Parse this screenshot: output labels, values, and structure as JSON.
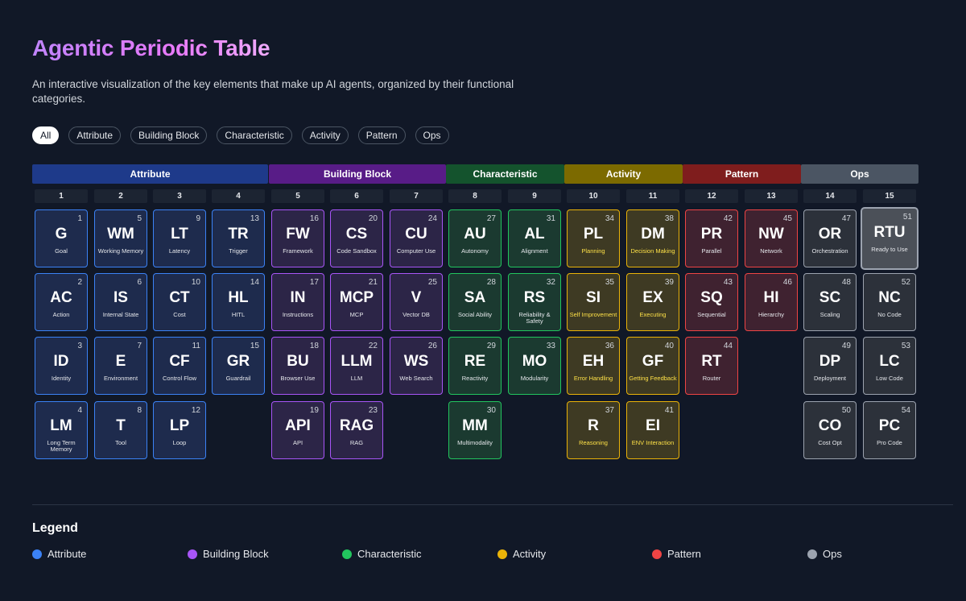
{
  "title": "Agentic Periodic Table",
  "subtitle": "An interactive visualization of the key elements that make up AI agents, organized by their functional categories.",
  "filters": [
    "All",
    "Attribute",
    "Building Block",
    "Characteristic",
    "Activity",
    "Pattern",
    "Ops"
  ],
  "active_filter": "All",
  "categories": [
    {
      "key": "attribute",
      "label": "Attribute",
      "color": "#1e3a8a"
    },
    {
      "key": "building",
      "label": "Building Block",
      "color": "#581c87"
    },
    {
      "key": "characteristic",
      "label": "Characteristic",
      "color": "#14532d"
    },
    {
      "key": "activity",
      "label": "Activity",
      "color": "#7c6a00"
    },
    {
      "key": "pattern",
      "label": "Pattern",
      "color": "#7f1d1d"
    },
    {
      "key": "ops",
      "label": "Ops",
      "color": "#4b5563"
    }
  ],
  "columns": [
    "1",
    "2",
    "3",
    "4",
    "5",
    "6",
    "7",
    "8",
    "9",
    "10",
    "11",
    "12",
    "13",
    "14",
    "15"
  ],
  "elements": [
    {
      "n": 1,
      "sym": "G",
      "name": "Goal",
      "cat": "attribute"
    },
    {
      "n": 2,
      "sym": "AC",
      "name": "Action",
      "cat": "attribute"
    },
    {
      "n": 3,
      "sym": "ID",
      "name": "Identity",
      "cat": "attribute"
    },
    {
      "n": 4,
      "sym": "LM",
      "name": "Long Term Memory",
      "cat": "attribute"
    },
    {
      "n": 5,
      "sym": "WM",
      "name": "Working Memory",
      "cat": "attribute"
    },
    {
      "n": 6,
      "sym": "IS",
      "name": "Internal State",
      "cat": "attribute"
    },
    {
      "n": 7,
      "sym": "E",
      "name": "Environment",
      "cat": "attribute"
    },
    {
      "n": 8,
      "sym": "T",
      "name": "Tool",
      "cat": "attribute"
    },
    {
      "n": 9,
      "sym": "LT",
      "name": "Latency",
      "cat": "attribute"
    },
    {
      "n": 10,
      "sym": "CT",
      "name": "Cost",
      "cat": "attribute"
    },
    {
      "n": 11,
      "sym": "CF",
      "name": "Control Flow",
      "cat": "attribute"
    },
    {
      "n": 12,
      "sym": "LP",
      "name": "Loop",
      "cat": "attribute"
    },
    {
      "n": 13,
      "sym": "TR",
      "name": "Trigger",
      "cat": "attribute"
    },
    {
      "n": 14,
      "sym": "HL",
      "name": "HITL",
      "cat": "attribute"
    },
    {
      "n": 15,
      "sym": "GR",
      "name": "Guardrail",
      "cat": "attribute"
    },
    {
      "n": 16,
      "sym": "FW",
      "name": "Framework",
      "cat": "building"
    },
    {
      "n": 17,
      "sym": "IN",
      "name": "Instructions",
      "cat": "building"
    },
    {
      "n": 18,
      "sym": "BU",
      "name": "Browser Use",
      "cat": "building"
    },
    {
      "n": 19,
      "sym": "API",
      "name": "API",
      "cat": "building"
    },
    {
      "n": 20,
      "sym": "CS",
      "name": "Code Sandbox",
      "cat": "building"
    },
    {
      "n": 21,
      "sym": "MCP",
      "name": "MCP",
      "cat": "building"
    },
    {
      "n": 22,
      "sym": "LLM",
      "name": "LLM",
      "cat": "building"
    },
    {
      "n": 23,
      "sym": "RAG",
      "name": "RAG",
      "cat": "building"
    },
    {
      "n": 24,
      "sym": "CU",
      "name": "Computer Use",
      "cat": "building"
    },
    {
      "n": 25,
      "sym": "V",
      "name": "Vector DB",
      "cat": "building"
    },
    {
      "n": 26,
      "sym": "WS",
      "name": "Web Search",
      "cat": "building"
    },
    {
      "n": 27,
      "sym": "AU",
      "name": "Autonomy",
      "cat": "characteristic"
    },
    {
      "n": 28,
      "sym": "SA",
      "name": "Social Ability",
      "cat": "characteristic"
    },
    {
      "n": 29,
      "sym": "RE",
      "name": "Reactivity",
      "cat": "characteristic"
    },
    {
      "n": 30,
      "sym": "MM",
      "name": "Multimodality",
      "cat": "characteristic"
    },
    {
      "n": 31,
      "sym": "AL",
      "name": "Alignment",
      "cat": "characteristic"
    },
    {
      "n": 32,
      "sym": "RS",
      "name": "Reliability & Safety",
      "cat": "characteristic"
    },
    {
      "n": 33,
      "sym": "MO",
      "name": "Modularity",
      "cat": "characteristic"
    },
    {
      "n": 34,
      "sym": "PL",
      "name": "Planning",
      "cat": "activity"
    },
    {
      "n": 35,
      "sym": "SI",
      "name": "Self Improvement",
      "cat": "activity"
    },
    {
      "n": 36,
      "sym": "EH",
      "name": "Error Handling",
      "cat": "activity"
    },
    {
      "n": 37,
      "sym": "R",
      "name": "Reasoning",
      "cat": "activity"
    },
    {
      "n": 38,
      "sym": "DM",
      "name": "Decision Making",
      "cat": "activity"
    },
    {
      "n": 39,
      "sym": "EX",
      "name": "Executing",
      "cat": "activity"
    },
    {
      "n": 40,
      "sym": "GF",
      "name": "Getting Feedback",
      "cat": "activity"
    },
    {
      "n": 41,
      "sym": "EI",
      "name": "ENV Interaction",
      "cat": "activity"
    },
    {
      "n": 42,
      "sym": "PR",
      "name": "Parallel",
      "cat": "pattern"
    },
    {
      "n": 43,
      "sym": "SQ",
      "name": "Sequential",
      "cat": "pattern"
    },
    {
      "n": 44,
      "sym": "RT",
      "name": "Router",
      "cat": "pattern"
    },
    {
      "n": 45,
      "sym": "NW",
      "name": "Network",
      "cat": "pattern"
    },
    {
      "n": 46,
      "sym": "HI",
      "name": "Hierarchy",
      "cat": "pattern"
    },
    {
      "n": 47,
      "sym": "OR",
      "name": "Orchestration",
      "cat": "ops"
    },
    {
      "n": 48,
      "sym": "SC",
      "name": "Scaling",
      "cat": "ops"
    },
    {
      "n": 49,
      "sym": "DP",
      "name": "Deployment",
      "cat": "ops"
    },
    {
      "n": 50,
      "sym": "CO",
      "name": "Cost Opt",
      "cat": "ops"
    },
    {
      "n": 51,
      "sym": "RTU",
      "name": "Ready to Use",
      "cat": "ops",
      "selected": true
    },
    {
      "n": 52,
      "sym": "NC",
      "name": "No Code",
      "cat": "ops"
    },
    {
      "n": 53,
      "sym": "LC",
      "name": "Low Code",
      "cat": "ops"
    },
    {
      "n": 54,
      "sym": "PC",
      "name": "Pro Code",
      "cat": "ops"
    }
  ],
  "legend": {
    "title": "Legend",
    "items": [
      {
        "label": "Attribute",
        "color": "#3b82f6"
      },
      {
        "label": "Building Block",
        "color": "#a855f7"
      },
      {
        "label": "Characteristic",
        "color": "#22c55e"
      },
      {
        "label": "Activity",
        "color": "#eab308"
      },
      {
        "label": "Pattern",
        "color": "#ef4444"
      },
      {
        "label": "Ops",
        "color": "#9ca3af"
      }
    ]
  }
}
